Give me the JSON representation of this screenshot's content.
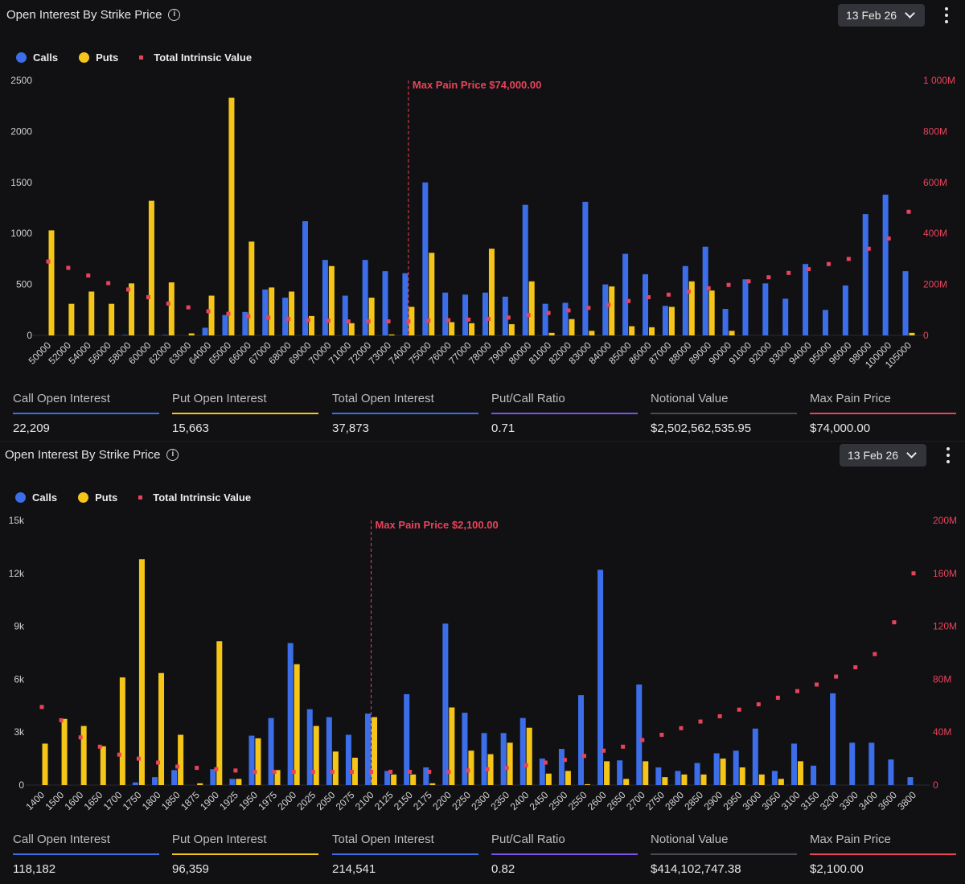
{
  "panels": [
    {
      "title": "Open Interest By Strike Price",
      "date": "13 Feb 26",
      "legend": {
        "calls": "Calls",
        "puts": "Puts",
        "tiv": "Total Intrinsic Value"
      },
      "stats": [
        {
          "label": "Call Open Interest",
          "value": "22,209",
          "color": "#3b6ee8"
        },
        {
          "label": "Put Open Interest",
          "value": "15,663",
          "color": "#f5c518"
        },
        {
          "label": "Total Open Interest",
          "value": "37,873",
          "color": "#3b6ee8"
        },
        {
          "label": "Put/Call Ratio",
          "value": "0.71",
          "color": "#7a52e8"
        },
        {
          "label": "Notional Value",
          "value": "$2,502,562,535.95",
          "color": "#4a4a52"
        },
        {
          "label": "Max Pain Price",
          "value": "$74,000.00",
          "color": "#e8435a"
        }
      ]
    },
    {
      "title": "Open Interest By Strike Price",
      "date": "13 Feb 26",
      "legend": {
        "calls": "Calls",
        "puts": "Puts",
        "tiv": "Total Intrinsic Value"
      },
      "stats": [
        {
          "label": "Call Open Interest",
          "value": "118,182",
          "color": "#3b6ee8"
        },
        {
          "label": "Put Open Interest",
          "value": "96,359",
          "color": "#f5c518"
        },
        {
          "label": "Total Open Interest",
          "value": "214,541",
          "color": "#3b6ee8"
        },
        {
          "label": "Put/Call Ratio",
          "value": "0.82",
          "color": "#7a52e8"
        },
        {
          "label": "Notional Value",
          "value": "$414,102,747.38",
          "color": "#4a4a52"
        },
        {
          "label": "Max Pain Price",
          "value": "$2,100.00",
          "color": "#e8435a"
        }
      ]
    }
  ],
  "colors": {
    "calls": "#3b6ee8",
    "puts": "#f5c518",
    "tiv": "#e8435a",
    "axis_left": "#d0d0d0",
    "axis_right": "#e8435a"
  },
  "chart_data": [
    {
      "type": "bar",
      "categories": [
        "50000",
        "52000",
        "54000",
        "56000",
        "58000",
        "60000",
        "62000",
        "63000",
        "64000",
        "65000",
        "66000",
        "67000",
        "68000",
        "69000",
        "70000",
        "71000",
        "72000",
        "73000",
        "74000",
        "75000",
        "76000",
        "77000",
        "78000",
        "79000",
        "80000",
        "81000",
        "82000",
        "83000",
        "84000",
        "85000",
        "86000",
        "87000",
        "88000",
        "89000",
        "90000",
        "91000",
        "92000",
        "93000",
        "94000",
        "95000",
        "96000",
        "98000",
        "100000",
        "105000"
      ],
      "series": [
        {
          "name": "Calls",
          "values": [
            0,
            0,
            0,
            0,
            5,
            0,
            5,
            0,
            75,
            200,
            230,
            450,
            370,
            1120,
            740,
            390,
            740,
            630,
            610,
            1500,
            420,
            400,
            420,
            380,
            1280,
            310,
            320,
            1310,
            500,
            800,
            600,
            290,
            680,
            870,
            260,
            550,
            510,
            360,
            700,
            250,
            490,
            1190,
            1380,
            630
          ]
        },
        {
          "name": "Puts",
          "values": [
            1030,
            310,
            430,
            310,
            510,
            1320,
            520,
            20,
            390,
            2330,
            920,
            470,
            430,
            190,
            680,
            120,
            370,
            10,
            280,
            810,
            130,
            120,
            850,
            110,
            530,
            25,
            160,
            45,
            480,
            90,
            80,
            280,
            530,
            440,
            45,
            0,
            0,
            0,
            0,
            0,
            0,
            0,
            0,
            25
          ]
        },
        {
          "name": "Total Intrinsic Value",
          "values": [
            290,
            265,
            235,
            205,
            180,
            150,
            125,
            110,
            95,
            85,
            75,
            70,
            65,
            60,
            58,
            55,
            55,
            55,
            55,
            58,
            60,
            62,
            65,
            70,
            80,
            88,
            98,
            108,
            120,
            135,
            150,
            160,
            172,
            185,
            198,
            212,
            228,
            245,
            260,
            280,
            300,
            340,
            380,
            485
          ]
        }
      ],
      "yticks_left": [
        "2500",
        "2000",
        "1500",
        "1000",
        "500",
        "0"
      ],
      "yticks_right": [
        "1 000M",
        "800M",
        "600M",
        "400M",
        "200M",
        "0"
      ],
      "ylim": [
        0,
        2500
      ],
      "ylim_right": [
        0,
        1000
      ],
      "max_pain": {
        "category": "74000",
        "label": "Max Pain Price $74,000.00"
      }
    },
    {
      "type": "bar",
      "categories": [
        "1400",
        "1500",
        "1600",
        "1650",
        "1700",
        "1750",
        "1800",
        "1850",
        "1875",
        "1900",
        "1925",
        "1950",
        "1975",
        "2000",
        "2025",
        "2050",
        "2075",
        "2100",
        "2125",
        "2150",
        "2175",
        "2200",
        "2250",
        "2300",
        "2350",
        "2400",
        "2450",
        "2500",
        "2550",
        "2600",
        "2650",
        "2700",
        "2750",
        "2800",
        "2850",
        "2900",
        "2950",
        "3000",
        "3050",
        "3100",
        "3150",
        "3200",
        "3300",
        "3400",
        "3600",
        "3800"
      ],
      "series": [
        {
          "name": "Calls",
          "values": [
            0,
            0,
            0,
            0,
            0,
            150,
            450,
            850,
            0,
            900,
            350,
            2800,
            3800,
            8050,
            4300,
            3850,
            2850,
            4050,
            800,
            5150,
            1000,
            9150,
            4100,
            2950,
            2950,
            3800,
            1500,
            2050,
            5100,
            12200,
            1400,
            5700,
            1000,
            800,
            1250,
            1800,
            1950,
            3200,
            800,
            2350,
            1100,
            5200,
            2400,
            2400,
            1450,
            450
          ]
        },
        {
          "name": "Puts",
          "values": [
            2350,
            3750,
            3350,
            2200,
            6100,
            12800,
            6350,
            2850,
            100,
            8150,
            350,
            2650,
            850,
            6850,
            3350,
            1900,
            1550,
            3850,
            600,
            600,
            100,
            4400,
            1950,
            1750,
            2400,
            3250,
            650,
            800,
            50,
            1350,
            350,
            1350,
            450,
            600,
            600,
            1500,
            1000,
            600,
            350,
            1350,
            0,
            0,
            0,
            0,
            0,
            0
          ]
        },
        {
          "name": "Total Intrinsic Value",
          "values": [
            59,
            49,
            36,
            29,
            23,
            20,
            17,
            14,
            13,
            12,
            11,
            10,
            10,
            10,
            10,
            10,
            10,
            10,
            10,
            10,
            10,
            10,
            11,
            12,
            13,
            15,
            17,
            19,
            22,
            26,
            29,
            34,
            38,
            43,
            48,
            52,
            57,
            61,
            66,
            71,
            76,
            82,
            89,
            99,
            123,
            160
          ]
        }
      ],
      "yticks_left": [
        "15k",
        "12k",
        "9k",
        "6k",
        "3k",
        "0"
      ],
      "yticks_right": [
        "200M",
        "160M",
        "120M",
        "80M",
        "40M",
        "0"
      ],
      "ylim": [
        0,
        15000
      ],
      "ylim_right": [
        0,
        200
      ],
      "max_pain": {
        "category": "2100",
        "label": "Max Pain Price $2,100.00"
      }
    }
  ]
}
